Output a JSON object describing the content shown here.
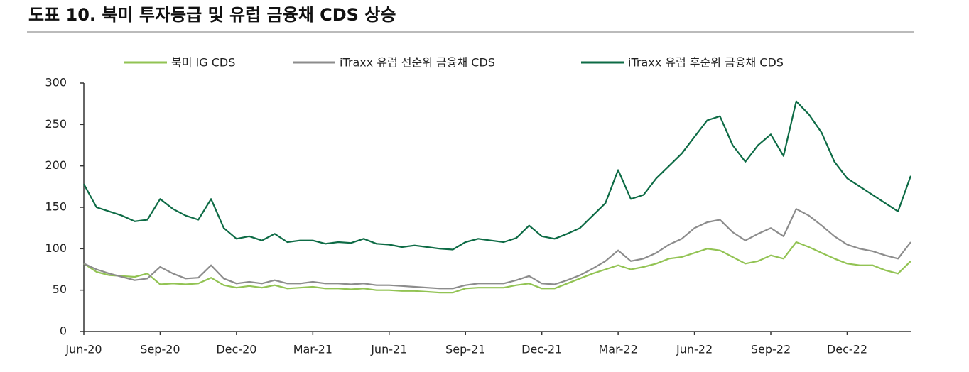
{
  "chart_data": {
    "type": "line",
    "title": "도표 10. 북미 투자등급 및 유럽 금융채 CDS 상승",
    "legend": "top",
    "categories": [
      "Jun-20",
      null,
      null,
      null,
      null,
      null,
      "Sep-20",
      null,
      null,
      null,
      null,
      null,
      "Dec-20",
      null,
      null,
      null,
      null,
      null,
      "Mar-21",
      null,
      null,
      null,
      null,
      null,
      "Jun-21",
      null,
      null,
      null,
      null,
      null,
      "Sep-21",
      null,
      null,
      null,
      null,
      null,
      "Dec-21",
      null,
      null,
      null,
      null,
      null,
      "Mar-22",
      null,
      null,
      null,
      null,
      null,
      "Jun-22",
      null,
      null,
      null,
      null,
      null,
      "Sep-22",
      null,
      null,
      null,
      null,
      null,
      "Dec-22",
      null,
      null,
      null,
      null,
      null
    ],
    "ylim": [
      0,
      300
    ],
    "yticks": [
      0,
      50,
      100,
      150,
      200,
      250,
      300
    ],
    "series": [
      {
        "name": "북미 IG CDS",
        "color": "#92c353",
        "values": [
          82,
          72,
          68,
          67,
          66,
          70,
          57,
          58,
          57,
          58,
          65,
          56,
          53,
          55,
          53,
          56,
          52,
          53,
          54,
          52,
          52,
          51,
          52,
          50,
          50,
          49,
          49,
          48,
          47,
          47,
          52,
          53,
          53,
          53,
          56,
          58,
          52,
          52,
          58,
          64,
          70,
          75,
          80,
          75,
          78,
          82,
          88,
          90,
          95,
          100,
          98,
          90,
          82,
          85,
          92,
          88,
          108,
          102,
          95,
          88,
          82,
          80,
          80,
          74,
          70,
          85
        ]
      },
      {
        "name": "iTraxx 유럽 선순위 금융채 CDS",
        "color": "#8c8c8c",
        "values": [
          82,
          75,
          70,
          66,
          62,
          64,
          78,
          70,
          64,
          65,
          80,
          64,
          58,
          60,
          58,
          62,
          58,
          58,
          60,
          58,
          58,
          57,
          58,
          56,
          56,
          55,
          54,
          53,
          52,
          52,
          56,
          58,
          58,
          58,
          62,
          67,
          58,
          57,
          62,
          68,
          76,
          85,
          98,
          85,
          88,
          95,
          105,
          112,
          125,
          132,
          135,
          120,
          110,
          118,
          125,
          115,
          148,
          140,
          128,
          115,
          105,
          100,
          97,
          92,
          88,
          108
        ]
      },
      {
        "name": "iTraxx 유럽 후순위 금융채 CDS",
        "color": "#0d6b45",
        "values": [
          178,
          150,
          145,
          140,
          133,
          135,
          160,
          148,
          140,
          135,
          160,
          125,
          112,
          115,
          110,
          118,
          108,
          110,
          110,
          106,
          108,
          107,
          112,
          106,
          105,
          102,
          104,
          102,
          100,
          99,
          108,
          112,
          110,
          108,
          113,
          128,
          115,
          112,
          118,
          125,
          140,
          155,
          195,
          160,
          165,
          185,
          200,
          215,
          235,
          255,
          260,
          225,
          205,
          225,
          238,
          212,
          278,
          262,
          240,
          205,
          185,
          175,
          165,
          155,
          145,
          188
        ]
      }
    ]
  }
}
